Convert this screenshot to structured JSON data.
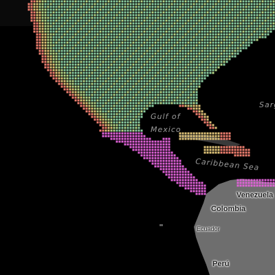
{
  "map": {
    "water_labels": {
      "gulf_line1": "Gulf of",
      "gulf_line2": "Mexico",
      "caribbean": "Caribbean Sea",
      "sargasso_partial": "Sarg"
    },
    "country_labels": {
      "venezuela": "Venezuela",
      "colombia": "Colombia",
      "ecuador": "Ecuador",
      "peru": "Perú"
    },
    "colors": {
      "ocean": "#000000",
      "land_gray": "#7a7a7a",
      "map_background": "#ffffff",
      "heat_low": "#8ecfa3",
      "heat_mid": "#b8d98a",
      "heat_warm": "#e0c479",
      "heat_high": "#f08070",
      "heat_peak": "#e062d8"
    },
    "overlay": "heat-dot-grid"
  }
}
